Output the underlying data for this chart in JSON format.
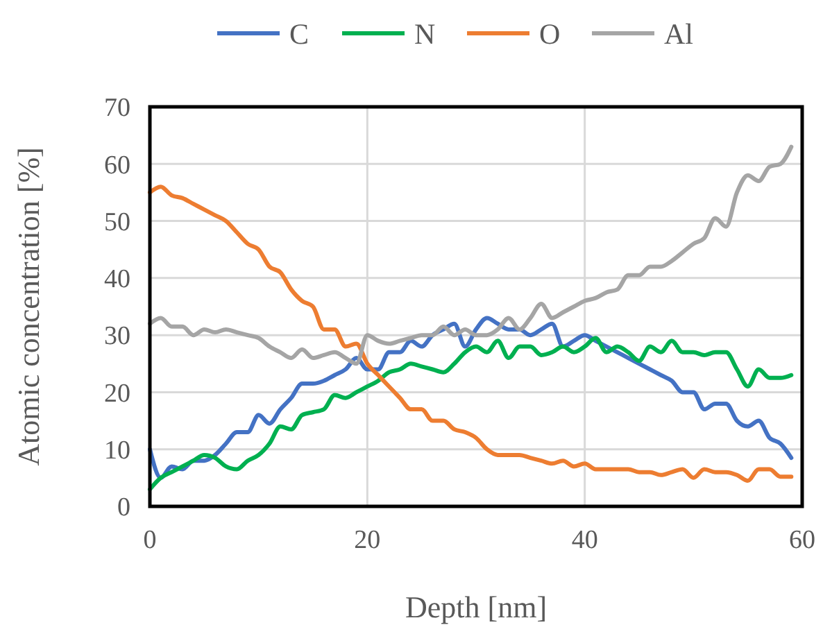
{
  "chart_data": {
    "type": "line",
    "xlabel": "Depth [nm]",
    "ylabel": "Atomic concentration [%]",
    "x": [
      0,
      1,
      2,
      3,
      4,
      5,
      6,
      7,
      8,
      9,
      10,
      11,
      12,
      13,
      14,
      15,
      16,
      17,
      18,
      19,
      20,
      21,
      22,
      23,
      24,
      25,
      26,
      27,
      28,
      29,
      30,
      31,
      32,
      33,
      34,
      35,
      36,
      37,
      38,
      39,
      40,
      41,
      42,
      43,
      44,
      45,
      46,
      47,
      48,
      49,
      50,
      51,
      52,
      53,
      54,
      55,
      56,
      57,
      58,
      59
    ],
    "series": [
      {
        "name": "C",
        "color": "#4472c4",
        "values": [
          10,
          5,
          7,
          6.5,
          8,
          8,
          9,
          11,
          13,
          13,
          16,
          14.5,
          17,
          19,
          21.5,
          21.5,
          22,
          23,
          24,
          26,
          24,
          24,
          27,
          27,
          29,
          28,
          30,
          31,
          32,
          28,
          31,
          33,
          32,
          31,
          31,
          30,
          31,
          32,
          28,
          29,
          30,
          29,
          28,
          27,
          26,
          25,
          24,
          23,
          22,
          20,
          20,
          17,
          18,
          18,
          15,
          14,
          15,
          12,
          11,
          8.5
        ]
      },
      {
        "name": "N",
        "color": "#00b050",
        "values": [
          3,
          5,
          6,
          7,
          8,
          9,
          8.5,
          7,
          6.5,
          8,
          9,
          11,
          14,
          13.5,
          16,
          16.5,
          17,
          19.5,
          19,
          20,
          21,
          22,
          23.5,
          24,
          25,
          24.5,
          24,
          23.5,
          25,
          27,
          28,
          27,
          29,
          26,
          28,
          28,
          26.5,
          27,
          28,
          27,
          28,
          29.5,
          27,
          28,
          27,
          25.5,
          28,
          27,
          29,
          27,
          27,
          26.5,
          27,
          27,
          24,
          21,
          24,
          22.5,
          22.5,
          23
        ]
      },
      {
        "name": "O",
        "color": "#ed7d31",
        "values": [
          55,
          56,
          54.5,
          54,
          53,
          52,
          51,
          50,
          48,
          46,
          45,
          42,
          41,
          38,
          36,
          35,
          31,
          31,
          28,
          28.5,
          25,
          23,
          21,
          19,
          17,
          17,
          15,
          15,
          13.5,
          13,
          12,
          10,
          9,
          9,
          9,
          8.5,
          8,
          7.5,
          8,
          7,
          7.5,
          6.5,
          6.5,
          6.5,
          6.5,
          6,
          6,
          5.5,
          6,
          6.5,
          5,
          6.5,
          6,
          6,
          5.5,
          4.5,
          6.5,
          6.5,
          5.2,
          5.2
        ]
      },
      {
        "name": "Al",
        "color": "#a5a5a5",
        "values": [
          32,
          33,
          31.5,
          31.5,
          30,
          31,
          30.5,
          31,
          30.5,
          30,
          29.5,
          28,
          27,
          26,
          27.5,
          26,
          26.5,
          27,
          26,
          25,
          30,
          29,
          28.5,
          29,
          29.5,
          30,
          30,
          31.5,
          30,
          31,
          30,
          30,
          31,
          33,
          31,
          33,
          35.5,
          33,
          34,
          35,
          36,
          36.5,
          37.5,
          38,
          40.5,
          40.5,
          42,
          42,
          43,
          44.5,
          46,
          47,
          50.5,
          49,
          55,
          58,
          57,
          59.5,
          60,
          63
        ]
      }
    ],
    "xlim": [
      0,
      60
    ],
    "xticks": [
      0,
      20,
      40,
      60
    ],
    "ylim": [
      0,
      70
    ],
    "yticks": [
      0,
      10,
      20,
      30,
      40,
      50,
      60,
      70
    ],
    "grid": true,
    "legend": "top",
    "marker": "none",
    "line_style": "solid"
  }
}
